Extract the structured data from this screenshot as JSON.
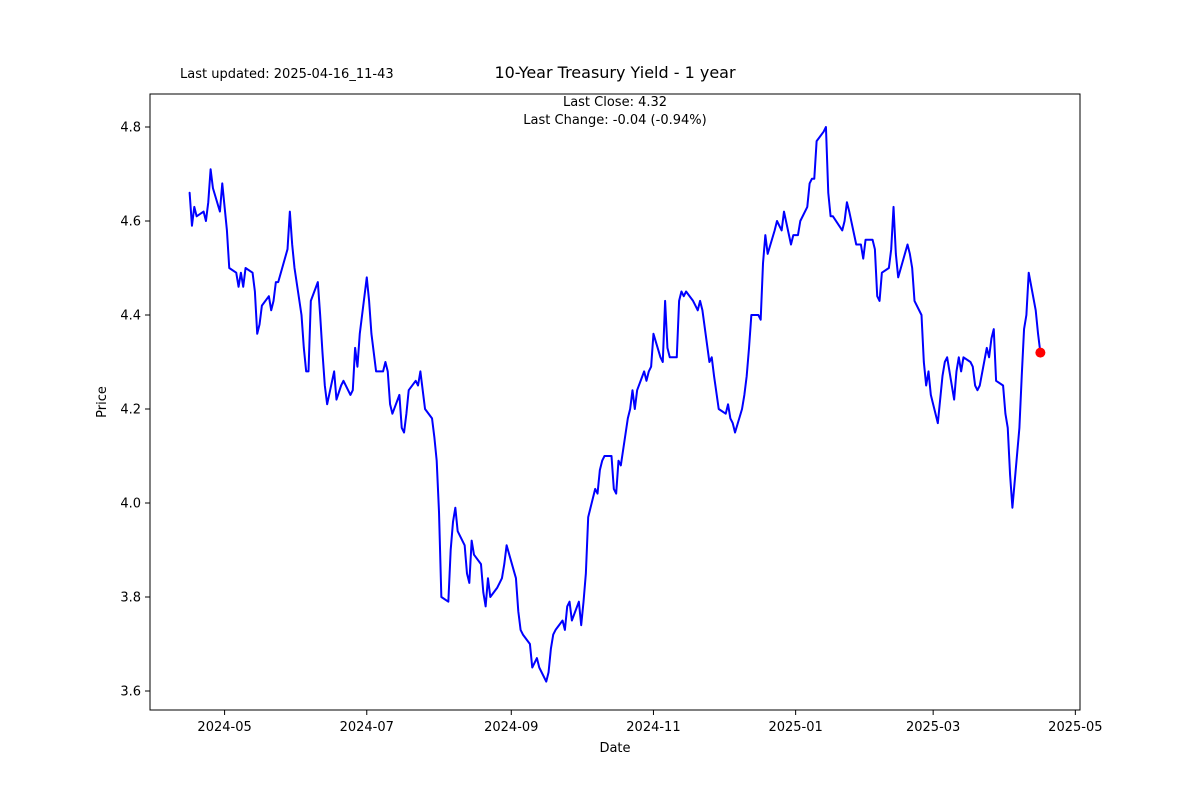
{
  "header": {
    "last_updated": "Last updated: 2025-04-16_11-43",
    "title": "10-Year Treasury Yield - 1 year",
    "subtitle_line1": "Last Close: 4.32",
    "subtitle_line2": "Last Change: -0.04 (-0.94%)"
  },
  "chart_data": {
    "type": "line",
    "title": "10-Year Treasury Yield - 1 year",
    "xlabel": "Date",
    "ylabel": "Price",
    "grid": false,
    "legend": "none",
    "line_color": "#0000ff",
    "last_point_color": "#ff0000",
    "last_close": 4.32,
    "last_change_text": "-0.04 (-0.94%)",
    "ylim": [
      3.56,
      4.87
    ],
    "y_ticks": [
      "3.6",
      "3.8",
      "4.0",
      "4.2",
      "4.4",
      "4.6",
      "4.8"
    ],
    "x_ticks": [
      {
        "date": "2024-05-01",
        "label": "2024-05"
      },
      {
        "date": "2024-07-01",
        "label": "2024-07"
      },
      {
        "date": "2024-09-01",
        "label": "2024-09"
      },
      {
        "date": "2024-11-01",
        "label": "2024-11"
      },
      {
        "date": "2025-01-01",
        "label": "2025-01"
      },
      {
        "date": "2025-03-01",
        "label": "2025-03"
      },
      {
        "date": "2025-05-01",
        "label": "2025-05"
      }
    ],
    "series": [
      {
        "name": "10-Year Treasury Yield",
        "points": [
          [
            "2024-04-16",
            4.66
          ],
          [
            "2024-04-17",
            4.59
          ],
          [
            "2024-04-18",
            4.63
          ],
          [
            "2024-04-19",
            4.61
          ],
          [
            "2024-04-22",
            4.62
          ],
          [
            "2024-04-23",
            4.6
          ],
          [
            "2024-04-24",
            4.64
          ],
          [
            "2024-04-25",
            4.71
          ],
          [
            "2024-04-26",
            4.67
          ],
          [
            "2024-04-29",
            4.62
          ],
          [
            "2024-04-30",
            4.68
          ],
          [
            "2024-05-01",
            4.63
          ],
          [
            "2024-05-02",
            4.58
          ],
          [
            "2024-05-03",
            4.5
          ],
          [
            "2024-05-06",
            4.49
          ],
          [
            "2024-05-07",
            4.46
          ],
          [
            "2024-05-08",
            4.49
          ],
          [
            "2024-05-09",
            4.46
          ],
          [
            "2024-05-10",
            4.5
          ],
          [
            "2024-05-13",
            4.49
          ],
          [
            "2024-05-14",
            4.45
          ],
          [
            "2024-05-15",
            4.36
          ],
          [
            "2024-05-16",
            4.38
          ],
          [
            "2024-05-17",
            4.42
          ],
          [
            "2024-05-20",
            4.44
          ],
          [
            "2024-05-21",
            4.41
          ],
          [
            "2024-05-22",
            4.43
          ],
          [
            "2024-05-23",
            4.47
          ],
          [
            "2024-05-24",
            4.47
          ],
          [
            "2024-05-28",
            4.54
          ],
          [
            "2024-05-29",
            4.62
          ],
          [
            "2024-05-30",
            4.55
          ],
          [
            "2024-05-31",
            4.5
          ],
          [
            "2024-06-03",
            4.4
          ],
          [
            "2024-06-04",
            4.33
          ],
          [
            "2024-06-05",
            4.28
          ],
          [
            "2024-06-06",
            4.28
          ],
          [
            "2024-06-07",
            4.43
          ],
          [
            "2024-06-10",
            4.47
          ],
          [
            "2024-06-11",
            4.4
          ],
          [
            "2024-06-12",
            4.32
          ],
          [
            "2024-06-13",
            4.25
          ],
          [
            "2024-06-14",
            4.21
          ],
          [
            "2024-06-17",
            4.28
          ],
          [
            "2024-06-18",
            4.22
          ],
          [
            "2024-06-20",
            4.25
          ],
          [
            "2024-06-21",
            4.26
          ],
          [
            "2024-06-24",
            4.23
          ],
          [
            "2024-06-25",
            4.24
          ],
          [
            "2024-06-26",
            4.33
          ],
          [
            "2024-06-27",
            4.29
          ],
          [
            "2024-06-28",
            4.36
          ],
          [
            "2024-07-01",
            4.48
          ],
          [
            "2024-07-02",
            4.43
          ],
          [
            "2024-07-03",
            4.36
          ],
          [
            "2024-07-05",
            4.28
          ],
          [
            "2024-07-08",
            4.28
          ],
          [
            "2024-07-09",
            4.3
          ],
          [
            "2024-07-10",
            4.28
          ],
          [
            "2024-07-11",
            4.21
          ],
          [
            "2024-07-12",
            4.19
          ],
          [
            "2024-07-15",
            4.23
          ],
          [
            "2024-07-16",
            4.16
          ],
          [
            "2024-07-17",
            4.15
          ],
          [
            "2024-07-18",
            4.19
          ],
          [
            "2024-07-19",
            4.24
          ],
          [
            "2024-07-22",
            4.26
          ],
          [
            "2024-07-23",
            4.25
          ],
          [
            "2024-07-24",
            4.28
          ],
          [
            "2024-07-25",
            4.24
          ],
          [
            "2024-07-26",
            4.2
          ],
          [
            "2024-07-29",
            4.18
          ],
          [
            "2024-07-30",
            4.14
          ],
          [
            "2024-07-31",
            4.09
          ],
          [
            "2024-08-01",
            3.98
          ],
          [
            "2024-08-02",
            3.8
          ],
          [
            "2024-08-05",
            3.79
          ],
          [
            "2024-08-06",
            3.9
          ],
          [
            "2024-08-07",
            3.96
          ],
          [
            "2024-08-08",
            3.99
          ],
          [
            "2024-08-09",
            3.94
          ],
          [
            "2024-08-12",
            3.91
          ],
          [
            "2024-08-13",
            3.85
          ],
          [
            "2024-08-14",
            3.83
          ],
          [
            "2024-08-15",
            3.92
          ],
          [
            "2024-08-16",
            3.89
          ],
          [
            "2024-08-19",
            3.87
          ],
          [
            "2024-08-20",
            3.81
          ],
          [
            "2024-08-21",
            3.78
          ],
          [
            "2024-08-22",
            3.84
          ],
          [
            "2024-08-23",
            3.8
          ],
          [
            "2024-08-26",
            3.82
          ],
          [
            "2024-08-27",
            3.83
          ],
          [
            "2024-08-28",
            3.84
          ],
          [
            "2024-08-29",
            3.87
          ],
          [
            "2024-08-30",
            3.91
          ],
          [
            "2024-09-03",
            3.84
          ],
          [
            "2024-09-04",
            3.77
          ],
          [
            "2024-09-05",
            3.73
          ],
          [
            "2024-09-06",
            3.72
          ],
          [
            "2024-09-09",
            3.7
          ],
          [
            "2024-09-10",
            3.65
          ],
          [
            "2024-09-11",
            3.66
          ],
          [
            "2024-09-12",
            3.67
          ],
          [
            "2024-09-13",
            3.65
          ],
          [
            "2024-09-16",
            3.62
          ],
          [
            "2024-09-17",
            3.64
          ],
          [
            "2024-09-18",
            3.69
          ],
          [
            "2024-09-19",
            3.72
          ],
          [
            "2024-09-20",
            3.73
          ],
          [
            "2024-09-23",
            3.75
          ],
          [
            "2024-09-24",
            3.73
          ],
          [
            "2024-09-25",
            3.78
          ],
          [
            "2024-09-26",
            3.79
          ],
          [
            "2024-09-27",
            3.75
          ],
          [
            "2024-09-30",
            3.79
          ],
          [
            "2024-10-01",
            3.74
          ],
          [
            "2024-10-02",
            3.79
          ],
          [
            "2024-10-03",
            3.85
          ],
          [
            "2024-10-04",
            3.97
          ],
          [
            "2024-10-07",
            4.03
          ],
          [
            "2024-10-08",
            4.02
          ],
          [
            "2024-10-09",
            4.07
          ],
          [
            "2024-10-10",
            4.09
          ],
          [
            "2024-10-11",
            4.1
          ],
          [
            "2024-10-14",
            4.1
          ],
          [
            "2024-10-15",
            4.03
          ],
          [
            "2024-10-16",
            4.02
          ],
          [
            "2024-10-17",
            4.09
          ],
          [
            "2024-10-18",
            4.08
          ],
          [
            "2024-10-21",
            4.18
          ],
          [
            "2024-10-22",
            4.2
          ],
          [
            "2024-10-23",
            4.24
          ],
          [
            "2024-10-24",
            4.2
          ],
          [
            "2024-10-25",
            4.24
          ],
          [
            "2024-10-28",
            4.28
          ],
          [
            "2024-10-29",
            4.26
          ],
          [
            "2024-10-30",
            4.28
          ],
          [
            "2024-10-31",
            4.29
          ],
          [
            "2024-11-01",
            4.36
          ],
          [
            "2024-11-04",
            4.31
          ],
          [
            "2024-11-05",
            4.3
          ],
          [
            "2024-11-06",
            4.43
          ],
          [
            "2024-11-07",
            4.33
          ],
          [
            "2024-11-08",
            4.31
          ],
          [
            "2024-11-11",
            4.31
          ],
          [
            "2024-11-12",
            4.43
          ],
          [
            "2024-11-13",
            4.45
          ],
          [
            "2024-11-14",
            4.44
          ],
          [
            "2024-11-15",
            4.45
          ],
          [
            "2024-11-18",
            4.43
          ],
          [
            "2024-11-19",
            4.42
          ],
          [
            "2024-11-20",
            4.41
          ],
          [
            "2024-11-21",
            4.43
          ],
          [
            "2024-11-22",
            4.41
          ],
          [
            "2024-11-25",
            4.3
          ],
          [
            "2024-11-26",
            4.31
          ],
          [
            "2024-11-27",
            4.27
          ],
          [
            "2024-11-29",
            4.2
          ],
          [
            "2024-12-02",
            4.19
          ],
          [
            "2024-12-03",
            4.21
          ],
          [
            "2024-12-04",
            4.18
          ],
          [
            "2024-12-05",
            4.17
          ],
          [
            "2024-12-06",
            4.15
          ],
          [
            "2024-12-09",
            4.2
          ],
          [
            "2024-12-10",
            4.23
          ],
          [
            "2024-12-11",
            4.27
          ],
          [
            "2024-12-12",
            4.33
          ],
          [
            "2024-12-13",
            4.4
          ],
          [
            "2024-12-16",
            4.4
          ],
          [
            "2024-12-17",
            4.39
          ],
          [
            "2024-12-18",
            4.51
          ],
          [
            "2024-12-19",
            4.57
          ],
          [
            "2024-12-20",
            4.53
          ],
          [
            "2024-12-23",
            4.58
          ],
          [
            "2024-12-24",
            4.6
          ],
          [
            "2024-12-26",
            4.58
          ],
          [
            "2024-12-27",
            4.62
          ],
          [
            "2024-12-30",
            4.55
          ],
          [
            "2024-12-31",
            4.57
          ],
          [
            "2025-01-02",
            4.57
          ],
          [
            "2025-01-03",
            4.6
          ],
          [
            "2025-01-06",
            4.63
          ],
          [
            "2025-01-07",
            4.68
          ],
          [
            "2025-01-08",
            4.69
          ],
          [
            "2025-01-09",
            4.69
          ],
          [
            "2025-01-10",
            4.77
          ],
          [
            "2025-01-13",
            4.79
          ],
          [
            "2025-01-14",
            4.8
          ],
          [
            "2025-01-15",
            4.66
          ],
          [
            "2025-01-16",
            4.61
          ],
          [
            "2025-01-17",
            4.61
          ],
          [
            "2025-01-21",
            4.58
          ],
          [
            "2025-01-22",
            4.6
          ],
          [
            "2025-01-23",
            4.64
          ],
          [
            "2025-01-24",
            4.62
          ],
          [
            "2025-01-27",
            4.55
          ],
          [
            "2025-01-28",
            4.55
          ],
          [
            "2025-01-29",
            4.55
          ],
          [
            "2025-01-30",
            4.52
          ],
          [
            "2025-01-31",
            4.56
          ],
          [
            "2025-02-03",
            4.56
          ],
          [
            "2025-02-04",
            4.54
          ],
          [
            "2025-02-05",
            4.44
          ],
          [
            "2025-02-06",
            4.43
          ],
          [
            "2025-02-07",
            4.49
          ],
          [
            "2025-02-10",
            4.5
          ],
          [
            "2025-02-11",
            4.54
          ],
          [
            "2025-02-12",
            4.63
          ],
          [
            "2025-02-13",
            4.53
          ],
          [
            "2025-02-14",
            4.48
          ],
          [
            "2025-02-18",
            4.55
          ],
          [
            "2025-02-19",
            4.53
          ],
          [
            "2025-02-20",
            4.5
          ],
          [
            "2025-02-21",
            4.43
          ],
          [
            "2025-02-24",
            4.4
          ],
          [
            "2025-02-25",
            4.3
          ],
          [
            "2025-02-26",
            4.25
          ],
          [
            "2025-02-27",
            4.28
          ],
          [
            "2025-02-28",
            4.23
          ],
          [
            "2025-03-03",
            4.17
          ],
          [
            "2025-03-04",
            4.22
          ],
          [
            "2025-03-05",
            4.27
          ],
          [
            "2025-03-06",
            4.3
          ],
          [
            "2025-03-07",
            4.31
          ],
          [
            "2025-03-10",
            4.22
          ],
          [
            "2025-03-11",
            4.28
          ],
          [
            "2025-03-12",
            4.31
          ],
          [
            "2025-03-13",
            4.28
          ],
          [
            "2025-03-14",
            4.31
          ],
          [
            "2025-03-17",
            4.3
          ],
          [
            "2025-03-18",
            4.29
          ],
          [
            "2025-03-19",
            4.25
          ],
          [
            "2025-03-20",
            4.24
          ],
          [
            "2025-03-21",
            4.25
          ],
          [
            "2025-03-24",
            4.33
          ],
          [
            "2025-03-25",
            4.31
          ],
          [
            "2025-03-26",
            4.35
          ],
          [
            "2025-03-27",
            4.37
          ],
          [
            "2025-03-28",
            4.26
          ],
          [
            "2025-03-31",
            4.25
          ],
          [
            "2025-04-01",
            4.19
          ],
          [
            "2025-04-02",
            4.16
          ],
          [
            "2025-04-03",
            4.06
          ],
          [
            "2025-04-04",
            3.99
          ],
          [
            "2025-04-07",
            4.16
          ],
          [
            "2025-04-08",
            4.27
          ],
          [
            "2025-04-09",
            4.37
          ],
          [
            "2025-04-10",
            4.4
          ],
          [
            "2025-04-11",
            4.49
          ],
          [
            "2025-04-14",
            4.41
          ],
          [
            "2025-04-15",
            4.36
          ],
          [
            "2025-04-16",
            4.32
          ]
        ]
      }
    ]
  }
}
